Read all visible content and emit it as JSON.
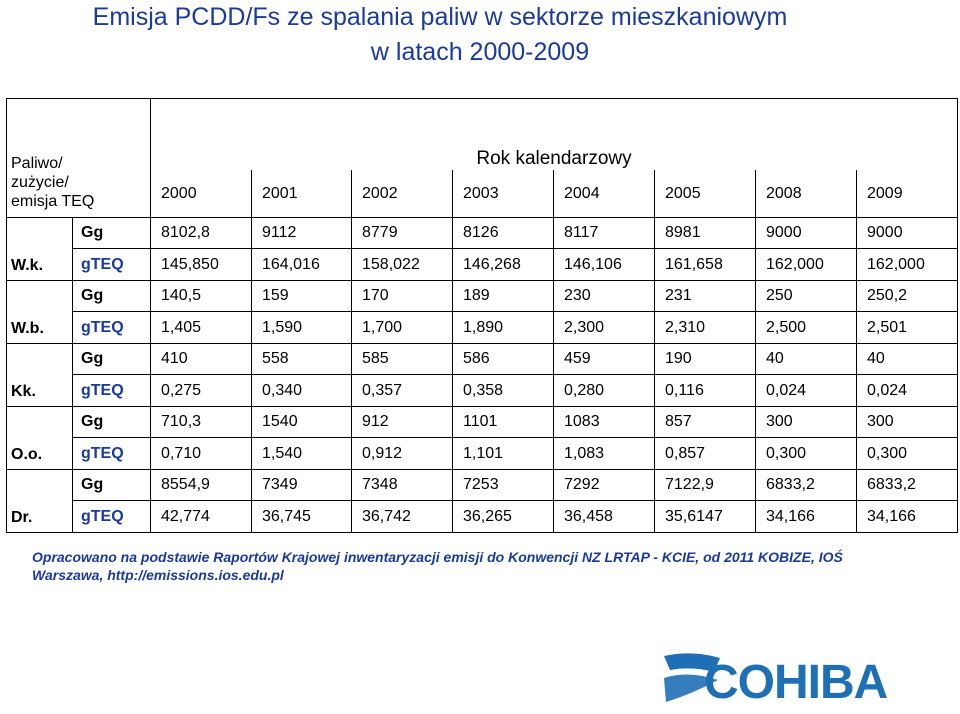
{
  "title_line1": "Emisja PCDD/Fs ze spalania paliw w sektorze mieszkaniowym",
  "title_line2": "w latach 2000-2009",
  "header": {
    "col_label": [
      "Paliwo/",
      "zużycie/",
      "emisja TEQ"
    ],
    "group_label": "Rok kalendarzowy",
    "years": [
      "2000",
      "2001",
      "2002",
      "2003",
      "2004",
      "2005",
      "2008",
      "2009"
    ]
  },
  "rows": [
    {
      "group": "W.k.",
      "gg_unit": "Gg",
      "gg": [
        "8102,8",
        "9112",
        "8779",
        "8126",
        "8117",
        "8981",
        "9000",
        "9000"
      ],
      "teq_unit": "gTEQ",
      "teq": [
        "145,850",
        "164,016",
        "158,022",
        "146,268",
        "146,106",
        "161,658",
        "162,000",
        "162,000"
      ]
    },
    {
      "group": "W.b.",
      "gg_unit": "Gg",
      "gg": [
        "140,5",
        "159",
        "170",
        "189",
        "230",
        "231",
        "250",
        "250,2"
      ],
      "teq_unit": "gTEQ",
      "teq": [
        "1,405",
        "1,590",
        "1,700",
        "1,890",
        "2,300",
        "2,310",
        "2,500",
        "2,501"
      ]
    },
    {
      "group": "Kk.",
      "gg_unit": "Gg",
      "gg": [
        "410",
        "558",
        "585",
        "586",
        "459",
        "190",
        "40",
        "40"
      ],
      "teq_unit": "gTEQ",
      "teq": [
        "0,275",
        "0,340",
        "0,357",
        "0,358",
        "0,280",
        "0,116",
        "0,024",
        "0,024"
      ]
    },
    {
      "group": "O.o.",
      "gg_unit": "Gg",
      "gg": [
        "710,3",
        "1540",
        "912",
        "1101",
        "1083",
        "857",
        "300",
        "300"
      ],
      "teq_unit": "gTEQ",
      "teq": [
        "0,710",
        "1,540",
        "0,912",
        "1,101",
        "1,083",
        "0,857",
        "0,300",
        "0,300"
      ]
    },
    {
      "group": "Dr.",
      "gg_unit": "Gg",
      "gg": [
        "8554,9",
        "7349",
        "7348",
        "7253",
        "7292",
        "7122,9",
        "6833,2",
        "6833,2"
      ],
      "teq_unit": "gTEQ",
      "teq": [
        "42,774",
        "36,745",
        "36,742",
        "36,265",
        "36,458",
        "35,6147",
        "34,166",
        "34,166"
      ]
    }
  ],
  "source_line1": "Opracowano na podstawie Raportów Krajowej inwentaryzacji emisji do Konwencji NZ LRTAP - KCIE, od 2011 KOBIZE, IOŚ",
  "source_line2": "Warszawa, http://emissions.ios.edu.pl",
  "logo_text": "COHIBA",
  "colors": {
    "title": "#1a3a9c",
    "gteq_unit": "#1a3a9c",
    "logo_blue": "#1f6fb5",
    "logo_gray": "#9aa5ad"
  }
}
